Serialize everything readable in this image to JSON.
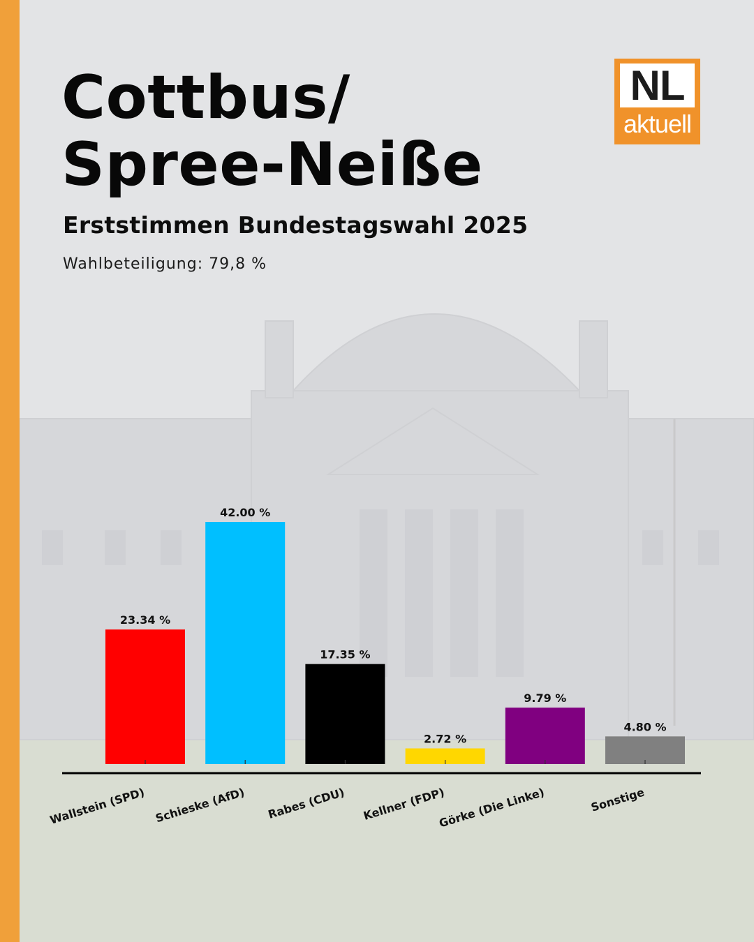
{
  "header": {
    "title_line1": "Cottbus/",
    "title_line2": "Spree-Neiße",
    "subtitle": "Erststimmen Bundestagswahl 2025",
    "turnout": "Wahlbeteiligung: 79,8 %"
  },
  "logo": {
    "main": "NL",
    "sub": "aktuell",
    "color": "#f0922a"
  },
  "chart_data": {
    "type": "bar",
    "categories": [
      "Wallstein (SPD)",
      "Schieske (AfD)",
      "Rabes (CDU)",
      "Kellner (FDP)",
      "Görke (Die Linke)",
      "Sonstige"
    ],
    "values": [
      23.34,
      42.0,
      17.35,
      2.72,
      9.79,
      4.8
    ],
    "value_labels": [
      "23.34 %",
      "42.00 %",
      "17.35 %",
      "2.72 %",
      "9.79 %",
      "4.80 %"
    ],
    "colors": [
      "#ff0000",
      "#00bfff",
      "#000000",
      "#ffd700",
      "#800080",
      "#808080"
    ],
    "title": "",
    "xlabel": "",
    "ylabel": "",
    "ylim": [
      0,
      44
    ],
    "grid": false,
    "legend": "none"
  }
}
